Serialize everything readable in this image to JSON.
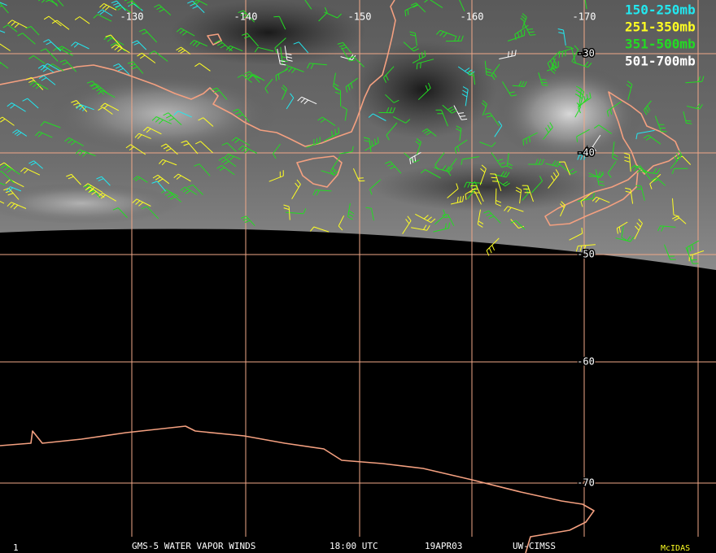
{
  "map": {
    "longitudes": [
      -130,
      -140,
      -150,
      -160,
      -170
    ],
    "latitudes": [
      -30,
      -40,
      -50,
      -60,
      -70
    ],
    "legend": [
      {
        "name": "150-250mb",
        "color": "#22e8f0"
      },
      {
        "name": "251-350mb",
        "color": "#ffff22"
      },
      {
        "name": "351-500mb",
        "color": "#22dd22"
      },
      {
        "name": "501-700mb",
        "color": "#ffffff"
      }
    ],
    "footer": {
      "frame": "1",
      "product": "GMS-5 WATER VAPOR WINDS",
      "time": "18:00 UTC",
      "date": "19APR03",
      "source": "UW-CIMSS",
      "software": "McIDAS"
    }
  }
}
